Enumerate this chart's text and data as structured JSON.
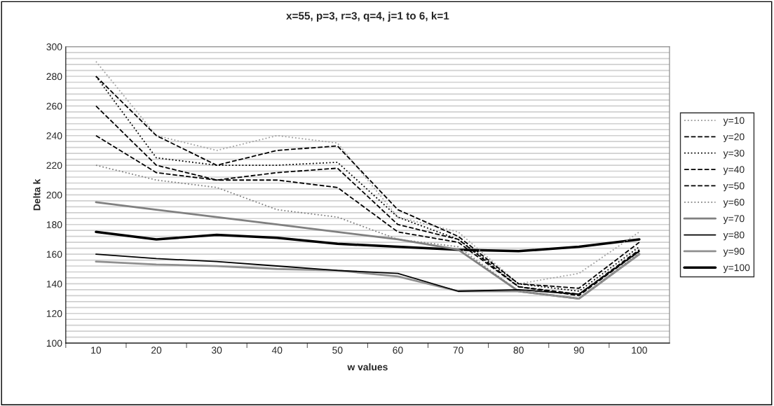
{
  "chart_data": {
    "type": "line",
    "title": "x=55, p=3, r=3, q=4, j=1 to 6, k=1",
    "xlabel": "w values",
    "ylabel": "Delta k",
    "categories": [
      "10",
      "20",
      "30",
      "40",
      "50",
      "60",
      "70",
      "80",
      "90",
      "100"
    ],
    "series": [
      {
        "name": "y=10",
        "color": "#a0a0a0",
        "line_style": "dotted",
        "values": [
          290,
          240,
          230,
          240,
          235,
          185,
          175,
          140,
          147,
          175
        ]
      },
      {
        "name": "y=20",
        "color": "#000000",
        "line_style": "dashed",
        "values": [
          280,
          240,
          220,
          230,
          233,
          190,
          172,
          140,
          137,
          168
        ]
      },
      {
        "name": "y=30",
        "color": "#000000",
        "line_style": "dotted",
        "values": [
          280,
          225,
          220,
          220,
          222,
          185,
          170,
          140,
          135,
          165
        ]
      },
      {
        "name": "y=40",
        "color": "#000000",
        "line_style": "dashed",
        "values": [
          260,
          220,
          210,
          215,
          218,
          180,
          170,
          138,
          133,
          163
        ]
      },
      {
        "name": "y=50",
        "color": "#000000",
        "line_style": "dashed",
        "values": [
          240,
          215,
          210,
          210,
          205,
          175,
          168,
          138,
          132,
          162
        ]
      },
      {
        "name": "y=60",
        "color": "#808080",
        "line_style": "dotted",
        "values": [
          220,
          210,
          205,
          190,
          185,
          170,
          165,
          135,
          130,
          161
        ]
      },
      {
        "name": "y=70",
        "color": "#808080",
        "line_style": "solid",
        "values": [
          195,
          190,
          185,
          180,
          175,
          170,
          163,
          135,
          130,
          160
        ]
      },
      {
        "name": "y=80",
        "color": "#000000",
        "line_style": "solid",
        "values": [
          160,
          157,
          155,
          152,
          149,
          147,
          135,
          136,
          133,
          162
        ]
      },
      {
        "name": "y=90",
        "color": "#909090",
        "line_style": "solid",
        "values": [
          155,
          153,
          152,
          150,
          149,
          145,
          135,
          135,
          130,
          160
        ]
      },
      {
        "name": "y=100",
        "color": "#000000",
        "line_style": "solid",
        "values": [
          175,
          170,
          173,
          171,
          167,
          165,
          163,
          162,
          165,
          170
        ]
      }
    ],
    "ylim": [
      100,
      300
    ],
    "yticks": [
      100,
      {
        "value": 104,
        "label": null
      },
      {
        "value": 108,
        "label": null
      },
      {
        "value": 112,
        "label": null
      },
      {
        "value": 116,
        "label": null
      },
      120,
      {
        "value": 124,
        "label": null
      },
      {
        "value": 128,
        "label": null
      },
      {
        "value": 132,
        "label": null
      },
      {
        "value": 136,
        "label": null
      },
      140,
      {
        "value": 144,
        "label": null
      },
      {
        "value": 148,
        "label": null
      },
      {
        "value": 152,
        "label": null
      },
      {
        "value": 156,
        "label": null
      },
      160,
      {
        "value": 164,
        "label": null
      },
      {
        "value": 168,
        "label": null
      },
      {
        "value": 172,
        "label": null
      },
      {
        "value": 176,
        "label": null
      },
      180,
      {
        "value": 184,
        "label": null
      },
      {
        "value": 188,
        "label": null
      },
      {
        "value": 192,
        "label": null
      },
      {
        "value": 196,
        "label": null
      },
      200,
      {
        "value": 204,
        "label": null
      },
      {
        "value": 208,
        "label": null
      },
      {
        "value": 212,
        "label": null
      },
      {
        "value": 216,
        "label": null
      },
      220,
      {
        "value": 224,
        "label": null
      },
      {
        "value": 228,
        "label": null
      },
      {
        "value": 232,
        "label": null
      },
      {
        "value": 236,
        "label": null
      },
      240,
      {
        "value": 244,
        "label": null
      },
      {
        "value": 248,
        "label": null
      },
      {
        "value": 252,
        "label": null
      },
      {
        "value": 256,
        "label": null
      },
      260,
      {
        "value": 264,
        "label": null
      },
      {
        "value": 268,
        "label": null
      },
      {
        "value": 272,
        "label": null
      },
      {
        "value": 276,
        "label": null
      },
      280,
      {
        "value": 284,
        "label": null
      },
      {
        "value": 288,
        "label": null
      },
      {
        "value": 292,
        "label": null
      },
      {
        "value": 296,
        "label": null
      },
      300
    ],
    "grid": "y",
    "legend": "right",
    "marker": "none"
  }
}
